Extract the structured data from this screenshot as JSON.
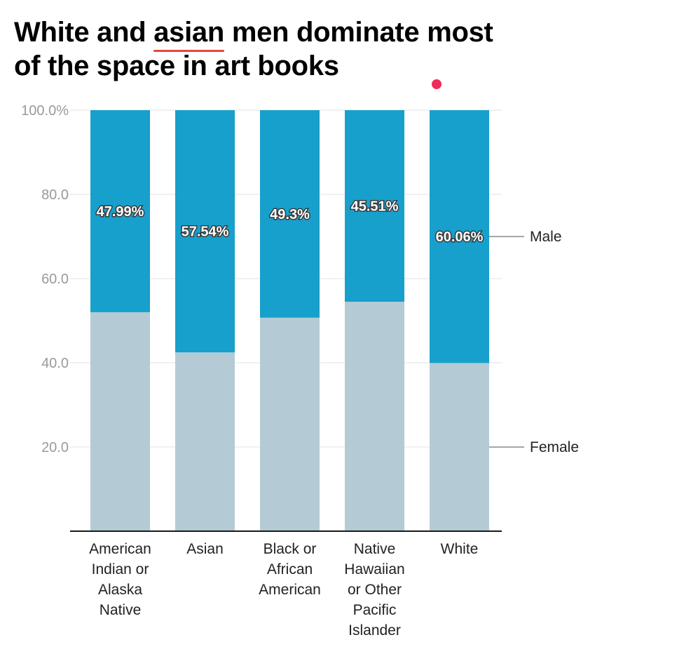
{
  "title": {
    "prefix": "White and ",
    "highlight": "asian",
    "suffix": " men dominate most of the space in art books"
  },
  "colors": {
    "male": "#17a0cc",
    "female": "#b4cbd5",
    "accent_underline": "#e5483b",
    "accent_dot": "#ef2b5a",
    "grid": "#e3e3e3",
    "tick_text": "#9a9a9a"
  },
  "chart_data": {
    "type": "bar",
    "stacked": true,
    "title": "White and asian men dominate most of the space in art books",
    "categories": [
      [
        "American",
        "Indian or",
        "Alaska",
        "Native"
      ],
      [
        "Asian"
      ],
      [
        "Black or",
        "African",
        "American"
      ],
      [
        "Native",
        "Hawaiian",
        "or Other",
        "Pacific",
        "Islander"
      ],
      [
        "White"
      ]
    ],
    "series": [
      {
        "name": "Female",
        "values": [
          52.01,
          42.46,
          50.7,
          54.49,
          39.94
        ]
      },
      {
        "name": "Male",
        "values": [
          47.99,
          57.54,
          49.3,
          45.51,
          60.06
        ],
        "labels": [
          "47.99%",
          "57.54%",
          "49.3%",
          "45.51%",
          "60.06%"
        ]
      }
    ],
    "ylim": [
      0,
      100
    ],
    "yticks": [
      20,
      40,
      60,
      80,
      100
    ],
    "ytick_labels": [
      "20.0",
      "40.0",
      "60.0",
      "80.0",
      "100.0%"
    ],
    "grid": true,
    "legend_placement": "right",
    "legend": [
      {
        "name": "Male",
        "series": "Male"
      },
      {
        "name": "Female",
        "series": "Female"
      }
    ],
    "xlabel": "",
    "ylabel": ""
  }
}
